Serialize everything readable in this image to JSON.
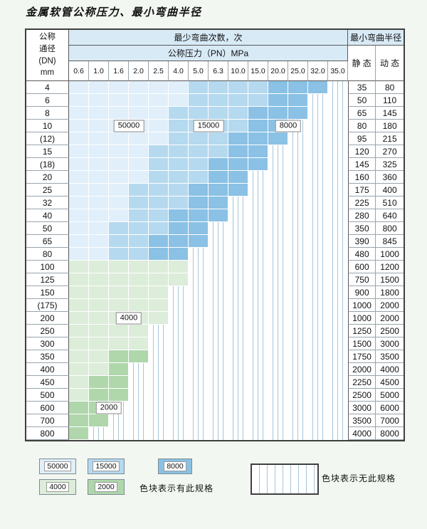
{
  "title": "金属软管公称压力、最小弯曲半径",
  "colors": {
    "c50000": "#e0effa",
    "c15000": "#b5d9ef",
    "c8000": "#8ac1e5",
    "c4000": "#dcedd9",
    "c2000": "#afd7ab",
    "stripe": "#a6c6da",
    "header_bg": "#d8eaf6",
    "page_bg": "#f2f7f1",
    "border_dark": "#3f3f3f",
    "grid_dark": "#5a5a5a",
    "grid_mid": "#9aa4ab"
  },
  "table": {
    "corner": {
      "line1": "公称",
      "line2": "通径",
      "line3": "(DN)",
      "line4": "mm"
    },
    "cycles_header": "最少弯曲次数，次",
    "pressure_header": "公称压力（PN）MPa",
    "radius_header": "最小弯曲半径",
    "static_header": "静 态",
    "dynamic_header": "动 态",
    "pressure_columns": [
      "0.6",
      "1.0",
      "1.6",
      "2.0",
      "2.5",
      "4.0",
      "5.0",
      "6.3",
      "10.0",
      "15.0",
      "20.0",
      "25.0",
      "32.0",
      "35.0"
    ],
    "rows": [
      {
        "dn": "4",
        "static": "35",
        "dynamic": "80",
        "bands": [
          {
            "v": "50000",
            "f": 1,
            "t": 6
          },
          {
            "v": "15000",
            "f": 7,
            "t": 10
          },
          {
            "v": "8000",
            "f": 11,
            "t": 13
          }
        ]
      },
      {
        "dn": "6",
        "static": "50",
        "dynamic": "110",
        "bands": [
          {
            "v": "50000",
            "f": 1,
            "t": 6
          },
          {
            "v": "15000",
            "f": 7,
            "t": 10
          },
          {
            "v": "8000",
            "f": 11,
            "t": 12
          }
        ]
      },
      {
        "dn": "8",
        "static": "65",
        "dynamic": "145",
        "bands": [
          {
            "v": "50000",
            "f": 1,
            "t": 5
          },
          {
            "v": "15000",
            "f": 6,
            "t": 9
          },
          {
            "v": "8000",
            "f": 10,
            "t": 12
          }
        ]
      },
      {
        "dn": "10",
        "static": "80",
        "dynamic": "180",
        "bands": [
          {
            "v": "50000",
            "f": 1,
            "t": 5
          },
          {
            "v": "15000",
            "f": 6,
            "t": 9
          },
          {
            "v": "8000",
            "f": 10,
            "t": 11
          }
        ]
      },
      {
        "dn": "(12)",
        "static": "95",
        "dynamic": "215",
        "bands": [
          {
            "v": "50000",
            "f": 1,
            "t": 5
          },
          {
            "v": "15000",
            "f": 6,
            "t": 8
          },
          {
            "v": "8000",
            "f": 9,
            "t": 11
          }
        ]
      },
      {
        "dn": "15",
        "static": "120",
        "dynamic": "270",
        "bands": [
          {
            "v": "50000",
            "f": 1,
            "t": 4
          },
          {
            "v": "15000",
            "f": 5,
            "t": 8
          },
          {
            "v": "8000",
            "f": 9,
            "t": 10
          }
        ]
      },
      {
        "dn": "(18)",
        "static": "145",
        "dynamic": "325",
        "bands": [
          {
            "v": "50000",
            "f": 1,
            "t": 4
          },
          {
            "v": "15000",
            "f": 5,
            "t": 7
          },
          {
            "v": "8000",
            "f": 8,
            "t": 10
          }
        ]
      },
      {
        "dn": "20",
        "static": "160",
        "dynamic": "360",
        "bands": [
          {
            "v": "50000",
            "f": 1,
            "t": 4
          },
          {
            "v": "15000",
            "f": 5,
            "t": 7
          },
          {
            "v": "8000",
            "f": 8,
            "t": 9
          }
        ]
      },
      {
        "dn": "25",
        "static": "175",
        "dynamic": "400",
        "bands": [
          {
            "v": "50000",
            "f": 1,
            "t": 3
          },
          {
            "v": "15000",
            "f": 4,
            "t": 6
          },
          {
            "v": "8000",
            "f": 7,
            "t": 9
          }
        ]
      },
      {
        "dn": "32",
        "static": "225",
        "dynamic": "510",
        "bands": [
          {
            "v": "50000",
            "f": 1,
            "t": 3
          },
          {
            "v": "15000",
            "f": 4,
            "t": 6
          },
          {
            "v": "8000",
            "f": 7,
            "t": 8
          }
        ]
      },
      {
        "dn": "40",
        "static": "280",
        "dynamic": "640",
        "bands": [
          {
            "v": "50000",
            "f": 1,
            "t": 3
          },
          {
            "v": "15000",
            "f": 4,
            "t": 5
          },
          {
            "v": "8000",
            "f": 6,
            "t": 8
          }
        ]
      },
      {
        "dn": "50",
        "static": "350",
        "dynamic": "800",
        "bands": [
          {
            "v": "50000",
            "f": 1,
            "t": 2
          },
          {
            "v": "15000",
            "f": 3,
            "t": 5
          },
          {
            "v": "8000",
            "f": 6,
            "t": 7
          }
        ]
      },
      {
        "dn": "65",
        "static": "390",
        "dynamic": "845",
        "bands": [
          {
            "v": "50000",
            "f": 1,
            "t": 2
          },
          {
            "v": "15000",
            "f": 3,
            "t": 4
          },
          {
            "v": "8000",
            "f": 5,
            "t": 7
          }
        ]
      },
      {
        "dn": "80",
        "static": "480",
        "dynamic": "1000",
        "bands": [
          {
            "v": "50000",
            "f": 1,
            "t": 2
          },
          {
            "v": "15000",
            "f": 3,
            "t": 4
          },
          {
            "v": "8000",
            "f": 5,
            "t": 6
          }
        ]
      },
      {
        "dn": "100",
        "static": "600",
        "dynamic": "1200",
        "bands": [
          {
            "v": "4000",
            "f": 1,
            "t": 6
          }
        ]
      },
      {
        "dn": "125",
        "static": "750",
        "dynamic": "1500",
        "bands": [
          {
            "v": "4000",
            "f": 1,
            "t": 6
          }
        ]
      },
      {
        "dn": "150",
        "static": "900",
        "dynamic": "1800",
        "bands": [
          {
            "v": "4000",
            "f": 1,
            "t": 5
          }
        ]
      },
      {
        "dn": "(175)",
        "static": "1000",
        "dynamic": "2000",
        "bands": [
          {
            "v": "4000",
            "f": 1,
            "t": 5
          }
        ]
      },
      {
        "dn": "200",
        "static": "1000",
        "dynamic": "2000",
        "bands": [
          {
            "v": "4000",
            "f": 1,
            "t": 5
          }
        ]
      },
      {
        "dn": "250",
        "static": "1250",
        "dynamic": "2500",
        "bands": [
          {
            "v": "4000",
            "f": 1,
            "t": 4
          }
        ]
      },
      {
        "dn": "300",
        "static": "1500",
        "dynamic": "3000",
        "bands": [
          {
            "v": "4000",
            "f": 1,
            "t": 4
          }
        ]
      },
      {
        "dn": "350",
        "static": "1750",
        "dynamic": "3500",
        "bands": [
          {
            "v": "4000",
            "f": 1,
            "t": 2
          },
          {
            "v": "2000",
            "f": 3,
            "t": 4
          }
        ]
      },
      {
        "dn": "400",
        "static": "2000",
        "dynamic": "4000",
        "bands": [
          {
            "v": "4000",
            "f": 1,
            "t": 2
          },
          {
            "v": "2000",
            "f": 3,
            "t": 3
          }
        ]
      },
      {
        "dn": "450",
        "static": "2250",
        "dynamic": "4500",
        "bands": [
          {
            "v": "4000",
            "f": 1,
            "t": 1
          },
          {
            "v": "2000",
            "f": 2,
            "t": 3
          }
        ]
      },
      {
        "dn": "500",
        "static": "2500",
        "dynamic": "5000",
        "bands": [
          {
            "v": "4000",
            "f": 1,
            "t": 1
          },
          {
            "v": "2000",
            "f": 2,
            "t": 3
          }
        ]
      },
      {
        "dn": "600",
        "static": "3000",
        "dynamic": "6000",
        "bands": [
          {
            "v": "2000",
            "f": 1,
            "t": 2
          }
        ]
      },
      {
        "dn": "700",
        "static": "3500",
        "dynamic": "7000",
        "bands": [
          {
            "v": "2000",
            "f": 1,
            "t": 2
          }
        ]
      },
      {
        "dn": "800",
        "static": "4000",
        "dynamic": "8000",
        "bands": [
          {
            "v": "2000",
            "f": 1,
            "t": 1
          }
        ]
      }
    ]
  },
  "overlays": [
    {
      "text": "50000",
      "dn": "10",
      "col_from": 3,
      "col_to": 4
    },
    {
      "text": "15000",
      "dn": "10",
      "col_from": 7,
      "col_to": 8
    },
    {
      "text": "8000",
      "dn": "10",
      "col_from": 11,
      "col_to": 12
    },
    {
      "text": "4000",
      "dn": "200",
      "col_from": 3,
      "col_to": 4
    },
    {
      "text": "2000",
      "dn": "600",
      "col_from": 2,
      "col_to": 3
    }
  ],
  "legend": {
    "available": [
      {
        "value": "50000"
      },
      {
        "value": "15000"
      },
      {
        "value": "8000"
      },
      {
        "value": "4000"
      },
      {
        "value": "2000"
      }
    ],
    "available_text": "色块表示有此规格",
    "unavailable_text": "色块表示无此规格"
  }
}
